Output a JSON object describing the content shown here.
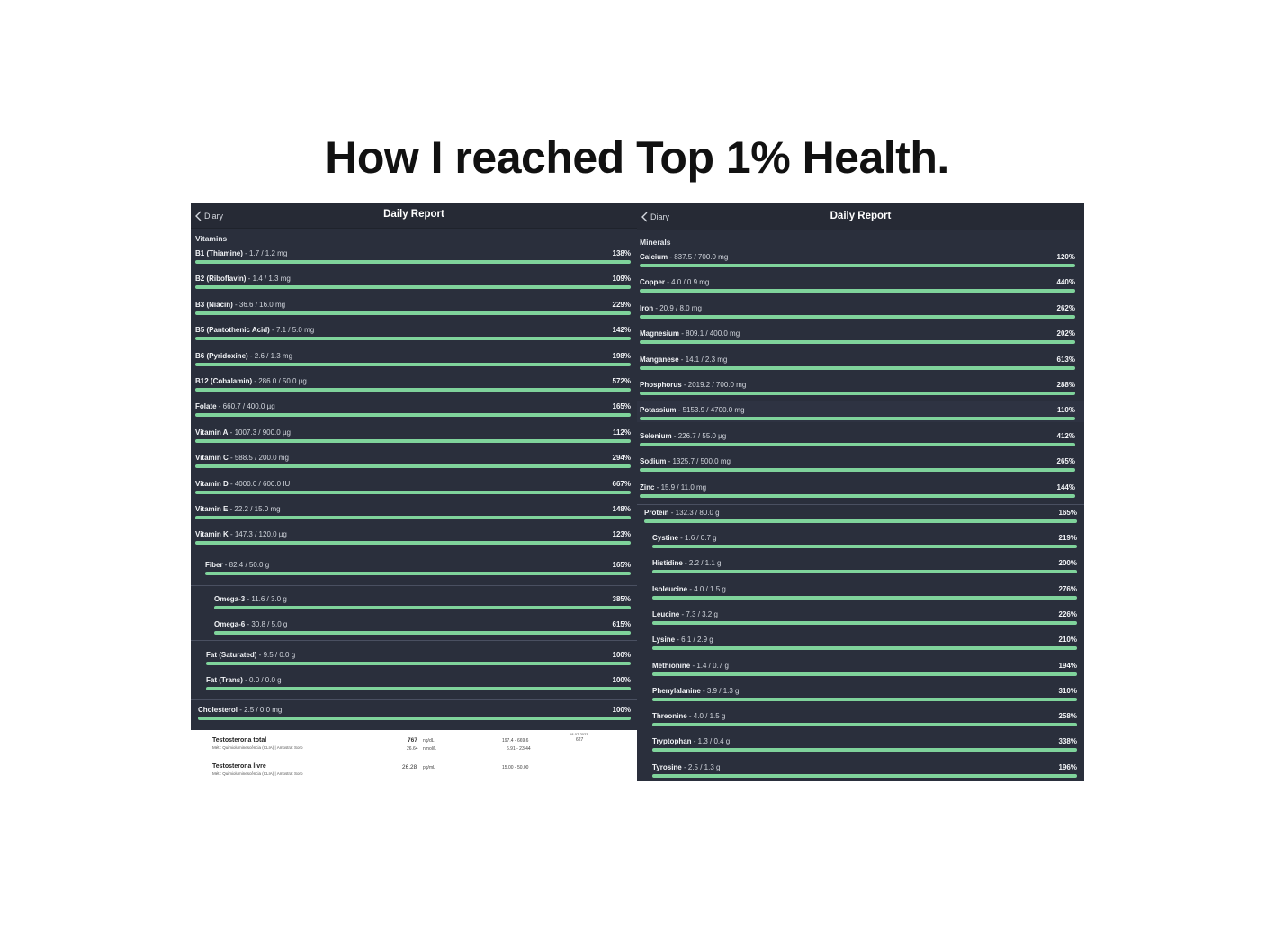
{
  "headline": "How I reached Top 1% Health.",
  "colors": {
    "panel_bg": "#2a2f3c",
    "bar_fill": "#7fd39b",
    "bar_track": "#3a4150"
  },
  "left": {
    "back_label": "Diary",
    "title": "Daily Report",
    "section": "Vitamins",
    "rows": [
      {
        "name": "B1 (Thiamine)",
        "detail": " - 1.7 / 1.2 mg",
        "pct": "138%",
        "fill": 1.0
      },
      {
        "name": "B2 (Riboflavin)",
        "detail": " - 1.4 / 1.3 mg",
        "pct": "109%",
        "fill": 1.0
      },
      {
        "name": "B3 (Niacin)",
        "detail": " - 36.6 / 16.0 mg",
        "pct": "229%",
        "fill": 1.0
      },
      {
        "name": "B5 (Pantothenic Acid)",
        "detail": " - 7.1 / 5.0 mg",
        "pct": "142%",
        "fill": 1.0
      },
      {
        "name": "B6 (Pyridoxine)",
        "detail": " - 2.6 / 1.3 mg",
        "pct": "198%",
        "fill": 1.0
      },
      {
        "name": "B12 (Cobalamin)",
        "detail": " - 286.0 / 50.0 µg",
        "pct": "572%",
        "fill": 1.0
      },
      {
        "name": "Folate",
        "detail": " - 660.7 / 400.0 µg",
        "pct": "165%",
        "fill": 1.0
      },
      {
        "name": "Vitamin A",
        "detail": " - 1007.3 / 900.0 µg",
        "pct": "112%",
        "fill": 1.0
      },
      {
        "name": "Vitamin C",
        "detail": " - 588.5 / 200.0 mg",
        "pct": "294%",
        "fill": 1.0
      },
      {
        "name": "Vitamin D",
        "detail": " - 4000.0 / 600.0 IU",
        "pct": "667%",
        "fill": 1.0
      },
      {
        "name": "Vitamin E",
        "detail": " - 22.2 / 15.0 mg",
        "pct": "148%",
        "fill": 1.0
      },
      {
        "name": "Vitamin K",
        "detail": " - 147.3 / 120.0 µg",
        "pct": "123%",
        "fill": 1.0
      }
    ],
    "extra_rows": [
      {
        "name": "Fiber",
        "detail": " - 82.4 / 50.0 g",
        "pct": "165%",
        "fill": 1.0
      },
      {
        "name": "Omega-3",
        "detail": " - 11.6 / 3.0 g",
        "pct": "385%",
        "fill": 1.0
      },
      {
        "name": "Omega-6",
        "detail": " - 30.8 / 5.0 g",
        "pct": "615%",
        "fill": 1.0
      },
      {
        "name": "Fat (Saturated)",
        "detail": " - 9.5 / 0.0 g",
        "pct": "100%",
        "fill": 1.0
      },
      {
        "name": "Fat (Trans)",
        "detail": " - 0.0 / 0.0 g",
        "pct": "100%",
        "fill": 1.0
      },
      {
        "name": "Cholesterol",
        "detail": " - 2.5 / 0.0 mg",
        "pct": "100%",
        "fill": 1.0
      }
    ]
  },
  "right": {
    "back_label": "Diary",
    "title": "Daily Report",
    "section": "Minerals",
    "rows": [
      {
        "name": "Calcium",
        "detail": " - 837.5 / 700.0 mg",
        "pct": "120%",
        "fill": 1.0
      },
      {
        "name": "Copper",
        "detail": " - 4.0 / 0.9 mg",
        "pct": "440%",
        "fill": 1.0
      },
      {
        "name": "Iron",
        "detail": " - 20.9 / 8.0 mg",
        "pct": "262%",
        "fill": 1.0
      },
      {
        "name": "Magnesium",
        "detail": " - 809.1 / 400.0 mg",
        "pct": "202%",
        "fill": 1.0
      },
      {
        "name": "Manganese",
        "detail": " - 14.1 / 2.3 mg",
        "pct": "613%",
        "fill": 1.0
      },
      {
        "name": "Phosphorus",
        "detail": " - 2019.2 / 700.0 mg",
        "pct": "288%",
        "fill": 1.0
      },
      {
        "name": "Potassium",
        "detail": " - 5153.9 / 4700.0 mg",
        "pct": "110%",
        "fill": 1.0
      },
      {
        "name": "Selenium",
        "detail": " - 226.7 / 55.0 µg",
        "pct": "412%",
        "fill": 1.0
      },
      {
        "name": "Sodium",
        "detail": " - 1325.7 / 500.0 mg",
        "pct": "265%",
        "fill": 1.0
      },
      {
        "name": "Zinc",
        "detail": " - 15.9 / 11.0 mg",
        "pct": "144%",
        "fill": 1.0
      }
    ],
    "protein": {
      "name": "Protein",
      "detail": " - 132.3 / 80.0 g",
      "pct": "165%",
      "fill": 1.0
    },
    "amino_rows": [
      {
        "name": "Cystine",
        "detail": " - 1.6 / 0.7 g",
        "pct": "219%",
        "fill": 1.0
      },
      {
        "name": "Histidine",
        "detail": " - 2.2 / 1.1 g",
        "pct": "200%",
        "fill": 1.0
      },
      {
        "name": "Isoleucine",
        "detail": " - 4.0 / 1.5 g",
        "pct": "276%",
        "fill": 1.0
      },
      {
        "name": "Leucine",
        "detail": " - 7.3 / 3.2 g",
        "pct": "226%",
        "fill": 1.0
      },
      {
        "name": "Lysine",
        "detail": " - 6.1 / 2.9 g",
        "pct": "210%",
        "fill": 1.0
      },
      {
        "name": "Methionine",
        "detail": " - 1.4 / 0.7 g",
        "pct": "194%",
        "fill": 1.0
      },
      {
        "name": "Phenylalanine",
        "detail": " - 3.9 / 1.3 g",
        "pct": "310%",
        "fill": 1.0
      },
      {
        "name": "Threonine",
        "detail": " - 4.0 / 1.5 g",
        "pct": "258%",
        "fill": 1.0
      },
      {
        "name": "Tryptophan",
        "detail": " - 1.3 / 0.4 g",
        "pct": "338%",
        "fill": 1.0
      },
      {
        "name": "Tyrosine",
        "detail": " - 2.5 / 1.3 g",
        "pct": "196%",
        "fill": 1.0
      }
    ]
  },
  "lab": {
    "rows": [
      {
        "name": "Testosterona total",
        "method": "Mét.: Quimioluminescência (CLIA) | Amostra: Soro",
        "value": "767",
        "unit": "ng/dL",
        "value2": "26.64",
        "unit2": "nmol/L",
        "ref": "197.4  -  669.6",
        "ref2": "6.91  -  23.44",
        "date": "18-07-2023",
        "prev": "627"
      },
      {
        "name": "Testosterona livre",
        "method": "Mét.: Quimioluminescência (CLIA) | Amostra: Soro",
        "value": "26.28",
        "unit": "pg/mL",
        "ref": "15.00  -  50.00"
      }
    ]
  }
}
